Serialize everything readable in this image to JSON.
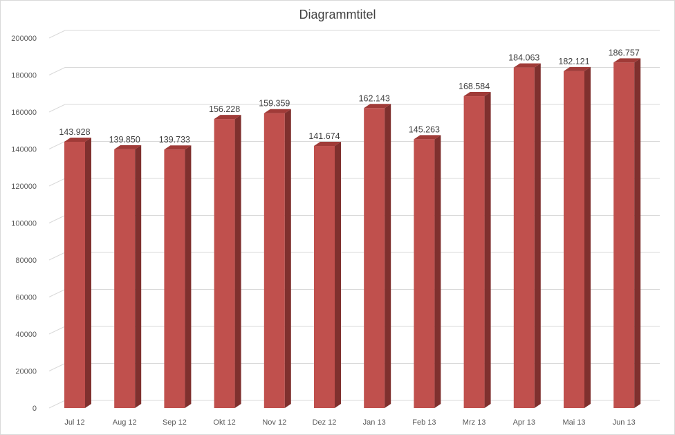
{
  "chart_data": {
    "type": "bar",
    "title": "Diagrammtitel",
    "categories": [
      "Jul 12",
      "Aug 12",
      "Sep 12",
      "Okt 12",
      "Nov 12",
      "Dez 12",
      "Jan 13",
      "Feb 13",
      "Mrz 13",
      "Apr 13",
      "Mai 13",
      "Jun 13"
    ],
    "values": [
      143928,
      139850,
      139733,
      156228,
      159359,
      141674,
      162143,
      145263,
      168584,
      184063,
      182121,
      186757
    ],
    "data_labels": [
      "143.928",
      "139.850",
      "139.733",
      "156.228",
      "159.359",
      "141.674",
      "162.143",
      "145.263",
      "168.584",
      "184.063",
      "182.121",
      "186.757"
    ],
    "y_ticks": [
      "0",
      "20000",
      "40000",
      "60000",
      "80000",
      "100000",
      "120000",
      "140000",
      "160000",
      "180000",
      "200000"
    ],
    "ylim": [
      0,
      200000
    ],
    "grid": true,
    "legend": "none",
    "bar_color": "#c0504d",
    "bar_side_color": "#7f302e",
    "bar_top_color": "#a03b38"
  }
}
